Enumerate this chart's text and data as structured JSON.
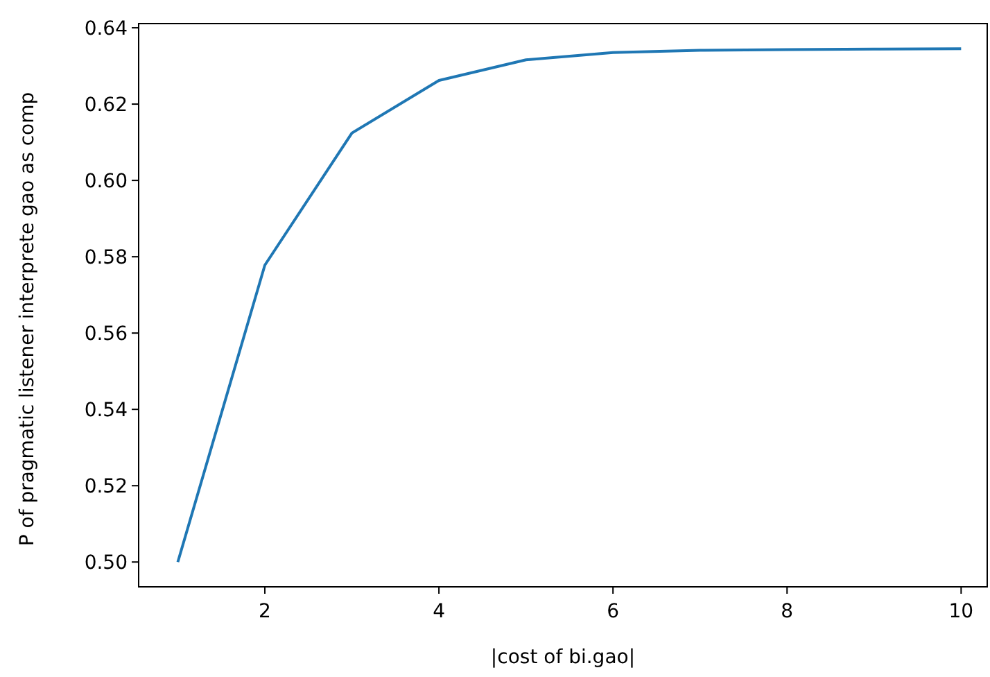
{
  "chart_data": {
    "type": "line",
    "xlabel": "|cost of bi.gao|",
    "ylabel": "P of pragmatic listener interprete gao as comp",
    "x": [
      1,
      2,
      3,
      4,
      5,
      6,
      7,
      8,
      9,
      10
    ],
    "series": [
      {
        "color": "#1f77b4",
        "values": [
          0.5,
          0.5778,
          0.6124,
          0.6262,
          0.6316,
          0.6335,
          0.6341,
          0.6343,
          0.6344,
          0.6345
        ]
      }
    ],
    "xlim": [
      0.55,
      10.3
    ],
    "xticks": [
      2,
      4,
      6,
      8,
      10
    ],
    "ylim": [
      0.4935,
      0.6411
    ],
    "yticks": [
      {
        "value": 0.5,
        "label": "0.50"
      },
      {
        "value": 0.52,
        "label": "0.52"
      },
      {
        "value": 0.54,
        "label": "0.54"
      },
      {
        "value": 0.56,
        "label": "0.56"
      },
      {
        "value": 0.58,
        "label": "0.58"
      },
      {
        "value": 0.6,
        "label": "0.60"
      },
      {
        "value": 0.62,
        "label": "0.62"
      },
      {
        "value": 0.64,
        "label": "0.64"
      }
    ],
    "grid": false,
    "marker": "none",
    "line_style": "solid"
  }
}
